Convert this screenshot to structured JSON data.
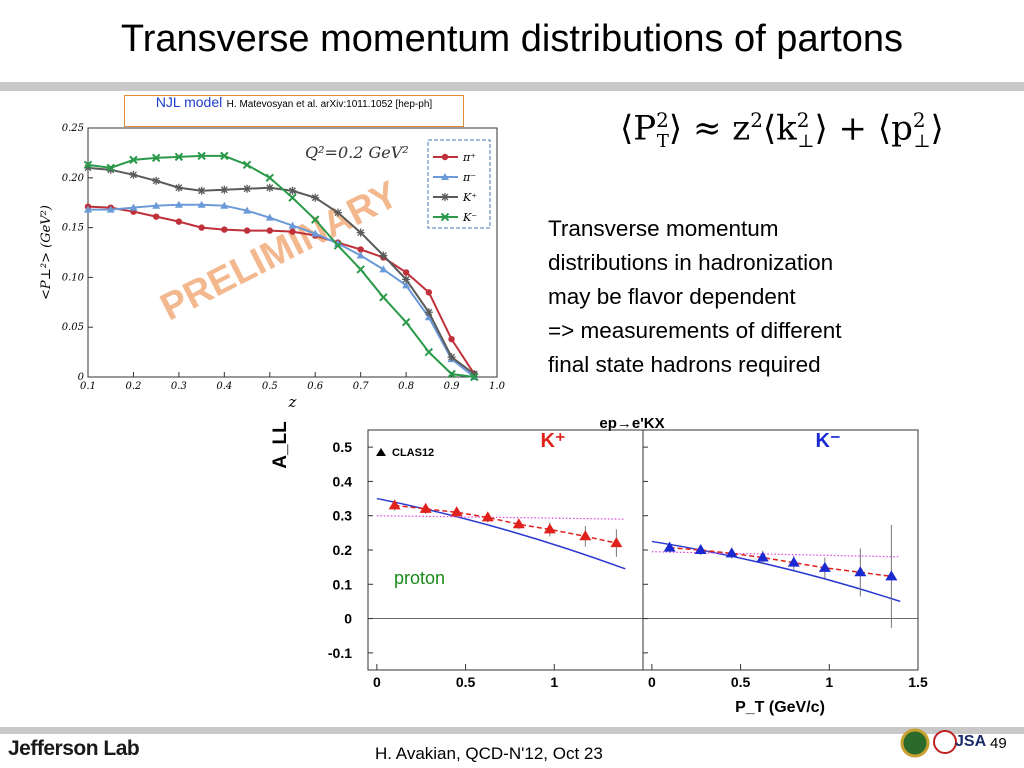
{
  "slide": {
    "title": "Transverse momentum distributions of partons",
    "njl_model": "NJL model",
    "njl_reference": "H. Matevosyan et al. arXiv:1011.1052 [hep-ph]",
    "formula": "⟨P_T^2⟩ ≈ z^2⟨k_⊥^2⟩ + ⟨p_⊥^2⟩",
    "bullet_lines": [
      "Transverse momentum",
      "distributions in hadronization",
      "may be flavor dependent",
      "=> measurements of different",
      "final state hadrons required"
    ],
    "proton_label": "proton",
    "footer": "H. Avakian, QCD-N'12,  Oct 23",
    "page_number": "49",
    "logo": "Jefferson Lab"
  },
  "chart_data": [
    {
      "type": "line",
      "xlabel": "z",
      "ylabel": "<P⊥²> (GeV²)",
      "annotation": "Q²=0.2 GeV²",
      "watermark": "PRELIMINARY",
      "xlim": [
        0.1,
        1.0
      ],
      "ylim": [
        0,
        0.25
      ],
      "x_ticks": [
        "0.1",
        "0.2",
        "0.3",
        "0.4",
        "0.5",
        "0.6",
        "0.7",
        "0.8",
        "0.9",
        "1.0"
      ],
      "y_ticks": [
        "0",
        "0.05",
        "0.10",
        "0.15",
        "0.20",
        "0.25"
      ],
      "legend_position": "top-right",
      "grid": false,
      "series": [
        {
          "name": "π⁺",
          "color": "#c0303a",
          "marker": "circle",
          "x": [
            0.1,
            0.15,
            0.2,
            0.25,
            0.3,
            0.35,
            0.4,
            0.45,
            0.5,
            0.55,
            0.6,
            0.65,
            0.7,
            0.75,
            0.8,
            0.85,
            0.9,
            0.95
          ],
          "y": [
            0.171,
            0.17,
            0.166,
            0.161,
            0.156,
            0.15,
            0.148,
            0.147,
            0.147,
            0.146,
            0.142,
            0.135,
            0.128,
            0.12,
            0.105,
            0.085,
            0.038,
            0.003
          ]
        },
        {
          "name": "π⁻",
          "color": "#6a9ad8",
          "marker": "triangle",
          "x": [
            0.1,
            0.15,
            0.2,
            0.25,
            0.3,
            0.35,
            0.4,
            0.45,
            0.5,
            0.55,
            0.6,
            0.65,
            0.7,
            0.75,
            0.8,
            0.85,
            0.9,
            0.95
          ],
          "y": [
            0.168,
            0.168,
            0.17,
            0.172,
            0.173,
            0.173,
            0.172,
            0.167,
            0.16,
            0.152,
            0.144,
            0.134,
            0.122,
            0.108,
            0.092,
            0.06,
            0.018,
            0.0
          ]
        },
        {
          "name": "K⁺",
          "color": "#5a5a5a",
          "marker": "star",
          "x": [
            0.1,
            0.15,
            0.2,
            0.25,
            0.3,
            0.35,
            0.4,
            0.45,
            0.5,
            0.55,
            0.6,
            0.65,
            0.7,
            0.75,
            0.8,
            0.85,
            0.9,
            0.95
          ],
          "y": [
            0.21,
            0.208,
            0.203,
            0.197,
            0.19,
            0.187,
            0.188,
            0.189,
            0.19,
            0.187,
            0.18,
            0.165,
            0.145,
            0.122,
            0.098,
            0.065,
            0.02,
            0.003
          ]
        },
        {
          "name": "K⁻",
          "color": "#2a9a4a",
          "marker": "cross",
          "x": [
            0.1,
            0.15,
            0.2,
            0.25,
            0.3,
            0.35,
            0.4,
            0.45,
            0.5,
            0.55,
            0.6,
            0.65,
            0.7,
            0.75,
            0.8,
            0.85,
            0.9,
            0.95
          ],
          "y": [
            0.213,
            0.21,
            0.218,
            0.22,
            0.221,
            0.222,
            0.222,
            0.213,
            0.2,
            0.18,
            0.158,
            0.132,
            0.108,
            0.08,
            0.055,
            0.025,
            0.003,
            0.0
          ]
        }
      ]
    },
    {
      "type": "scatter",
      "title": "ep→e'KX",
      "ylabel": "A_LL",
      "xlabel": "P_T (GeV/c)",
      "ylim": [
        -0.15,
        0.55
      ],
      "y_ticks": [
        "0.5",
        "0.4",
        "0.3",
        "0.2",
        "0.1",
        "0",
        "-0.1"
      ],
      "legend": "CLAS12",
      "panels": [
        {
          "label": "K⁺",
          "label_color": "#e0201a",
          "marker_color": "#e0201a",
          "x_ticks": [
            "0",
            "0.5",
            "1"
          ],
          "x": [
            0.1,
            0.275,
            0.45,
            0.625,
            0.8,
            0.975,
            1.175,
            1.35
          ],
          "y": [
            0.33,
            0.32,
            0.31,
            0.295,
            0.275,
            0.26,
            0.24,
            0.22
          ],
          "err": [
            0.015,
            0.015,
            0.015,
            0.015,
            0.015,
            0.02,
            0.03,
            0.04
          ],
          "solid_line": [
            [
              0.0,
              0.35
            ],
            [
              1.4,
              0.145
            ]
          ],
          "dotted_line": [
            [
              0.0,
              0.3
            ],
            [
              1.4,
              0.29
            ]
          ]
        },
        {
          "label": "K⁻",
          "label_color": "#1a2ad0",
          "marker_color": "#1a2ad0",
          "x_ticks": [
            "0",
            "0.5",
            "1",
            "1.5"
          ],
          "x": [
            0.1,
            0.275,
            0.45,
            0.625,
            0.8,
            0.975,
            1.175,
            1.35
          ],
          "y": [
            0.207,
            0.2,
            0.19,
            0.178,
            0.163,
            0.148,
            0.135,
            0.123
          ],
          "err": [
            0.015,
            0.015,
            0.015,
            0.02,
            0.02,
            0.03,
            0.07,
            0.15
          ],
          "solid_line": [
            [
              0.0,
              0.225
            ],
            [
              1.4,
              0.05
            ]
          ],
          "dotted_line": [
            [
              0.0,
              0.195
            ],
            [
              1.4,
              0.18
            ]
          ]
        }
      ]
    }
  ]
}
